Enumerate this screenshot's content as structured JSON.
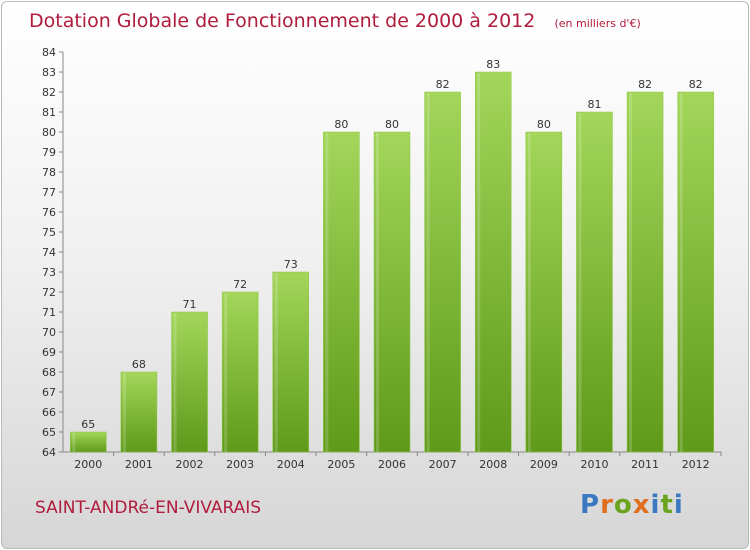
{
  "header": {
    "title": "Dotation Globale de Fonctionnement de 2000 à 2012",
    "unit": "(en milliers d'€)"
  },
  "commune": "SAINT-ANDRé-EN-VIVARAIS",
  "logo": {
    "text": "Proxiti",
    "letter_colors": [
      "#3a78c2",
      "#e07020",
      "#6aa31e",
      "#e07020",
      "#3a78c2",
      "#6aa31e",
      "#3a78c2"
    ]
  },
  "colors": {
    "bar": "#8cc63f",
    "bar_light": "#a3d65a",
    "bar_dark": "#5f9a1a",
    "title": "#b01c3c"
  },
  "chart_data": {
    "type": "bar",
    "categories": [
      "2000",
      "2001",
      "2002",
      "2003",
      "2004",
      "2005",
      "2006",
      "2007",
      "2008",
      "2009",
      "2010",
      "2011",
      "2012"
    ],
    "values": [
      65,
      68,
      71,
      72,
      73,
      80,
      80,
      82,
      83,
      80,
      81,
      82,
      82
    ],
    "data_labels": [
      "65",
      "68",
      "71",
      "72",
      "73",
      "80",
      "80",
      "82",
      "83",
      "80",
      "81",
      "82",
      "82"
    ],
    "ylim": [
      64,
      84
    ],
    "yticks": [
      "64",
      "65",
      "66",
      "67",
      "68",
      "69",
      "70",
      "71",
      "72",
      "73",
      "74",
      "75",
      "76",
      "77",
      "78",
      "79",
      "80",
      "81",
      "82",
      "83",
      "84"
    ],
    "grid": false,
    "legend": "none"
  }
}
